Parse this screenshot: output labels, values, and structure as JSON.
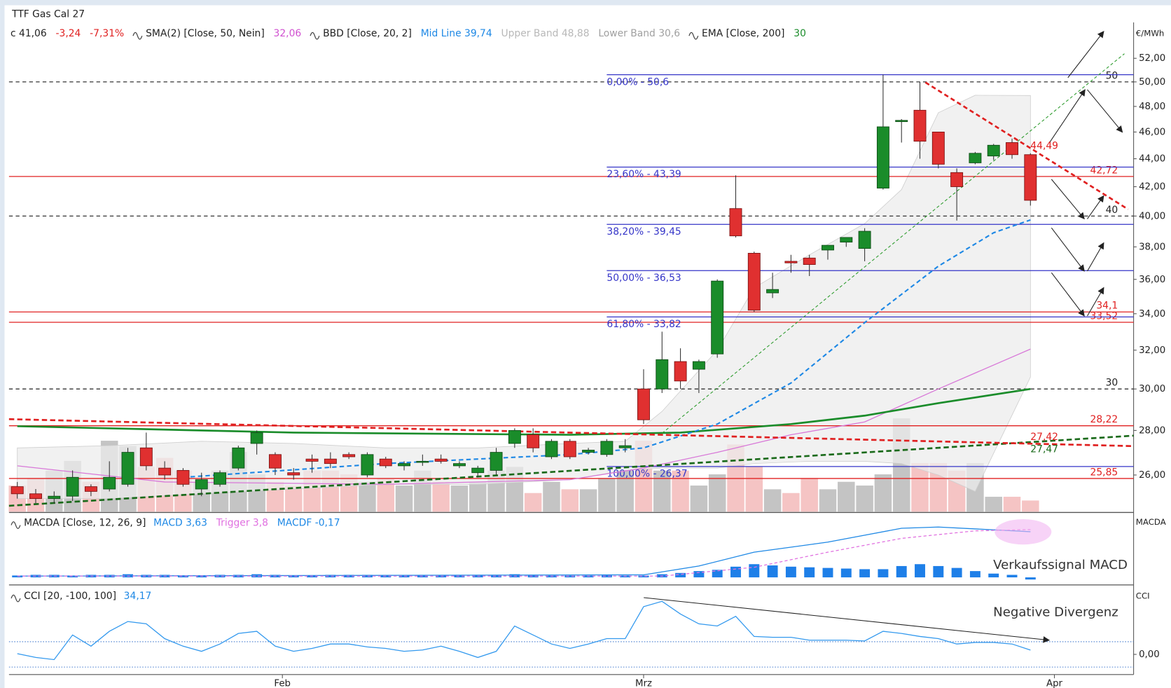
{
  "chart_data": [
    {
      "type": "candlestick",
      "title": "TTF Gas Cal 27",
      "unit": "€/MWh",
      "header": [
        {
          "text": "c 41,06",
          "color": "#222222"
        },
        {
          "text": "-3,24",
          "color": "#e02020"
        },
        {
          "text": "-7,31%",
          "color": "#e02020"
        },
        {
          "text": "SMA(2) [Close, 50, Nein]",
          "color": "#222222",
          "icon": true
        },
        {
          "text": "32,06",
          "color": "#d050d0"
        },
        {
          "text": "BBD [Close, 20, 2]",
          "color": "#222222",
          "icon": true
        },
        {
          "text": "Mid Line 39,74",
          "color": "#1e88e5"
        },
        {
          "text": "Upper Band 48,88",
          "color": "#b8b8b8"
        },
        {
          "text": "Lower Band 30,6",
          "color": "#a0a0a0"
        },
        {
          "text": "EMA [Close, 200]",
          "color": "#222222",
          "icon": true
        },
        {
          "text": "30",
          "color": "#1a8c2a"
        }
      ],
      "log_scale": true,
      "xlim": [
        -0.45,
        60.6
      ],
      "xticks": [
        {
          "value": 14.39,
          "label": "Feb"
        },
        {
          "value": 34.0,
          "label": "Mrz"
        },
        {
          "value": 56.3,
          "label": "Apr"
        }
      ],
      "ylim": [
        24.46,
        55.2
      ],
      "yticks": [
        {
          "value": 26,
          "label": "26,00"
        },
        {
          "value": 28,
          "label": "28,00"
        },
        {
          "value": 30,
          "label": "30,00"
        },
        {
          "value": 32,
          "label": "32,00"
        },
        {
          "value": 34,
          "label": "34,00"
        },
        {
          "value": 36,
          "label": "36,00"
        },
        {
          "value": 38,
          "label": "38,00"
        },
        {
          "value": 40,
          "label": "40,00"
        },
        {
          "value": 42,
          "label": "42,00"
        },
        {
          "value": 44,
          "label": "44,00"
        },
        {
          "value": 46,
          "label": "46,00"
        },
        {
          "value": 48,
          "label": "48,00"
        },
        {
          "value": 50,
          "label": "50,00"
        },
        {
          "value": 52,
          "label": "52,00"
        }
      ],
      "up_color": "#1a8c2a",
      "down_color": "#e03030",
      "open": [
        25.5,
        25.2,
        25.0,
        25.1,
        25.5,
        25.4,
        25.6,
        27.2,
        26.3,
        26.2,
        25.4,
        25.6,
        26.3,
        27.4,
        26.9,
        26.1,
        26.7,
        26.7,
        26.9,
        26.0,
        26.7,
        26.4,
        26.6,
        26.7,
        26.4,
        26.1,
        26.2,
        27.4,
        27.8,
        26.8,
        27.5,
        27.0,
        26.9,
        27.2,
        30.0,
        30.0,
        31.4,
        31.0,
        31.8,
        40.5,
        37.6,
        35.2,
        37.1,
        37.3,
        37.8,
        38.3,
        37.9,
        41.9,
        46.8,
        47.7,
        46.0,
        43.0,
        43.7,
        44.2,
        45.2,
        44.3
      ],
      "high": [
        25.7,
        25.4,
        25.3,
        26.2,
        25.6,
        26.6,
        27.2,
        27.9,
        26.6,
        26.3,
        26.1,
        26.2,
        27.3,
        28.0,
        27.0,
        26.3,
        26.9,
        27.0,
        27.0,
        27.0,
        26.8,
        26.6,
        26.9,
        26.9,
        26.6,
        26.4,
        27.2,
        28.1,
        28.1,
        27.6,
        27.6,
        27.2,
        27.6,
        27.6,
        31.0,
        33.0,
        32.1,
        31.5,
        36.0,
        42.8,
        37.7,
        36.4,
        37.5,
        37.5,
        38.1,
        38.6,
        39.2,
        50.6,
        47.0,
        50.0,
        46.0,
        43.3,
        44.5,
        45.1,
        45.5,
        44.4
      ],
      "low": [
        25.0,
        24.8,
        24.8,
        24.9,
        25.1,
        25.3,
        25.5,
        26.2,
        25.8,
        25.5,
        25.1,
        25.5,
        26.2,
        26.9,
        26.0,
        25.8,
        26.1,
        26.3,
        26.7,
        25.9,
        26.3,
        26.2,
        26.4,
        26.5,
        26.3,
        25.9,
        26.0,
        27.2,
        27.0,
        26.7,
        26.7,
        26.9,
        26.8,
        27.0,
        28.3,
        29.8,
        30.0,
        29.8,
        31.6,
        38.6,
        34.1,
        34.9,
        36.4,
        36.2,
        37.2,
        38.0,
        37.1,
        41.8,
        45.2,
        44.0,
        43.3,
        39.7,
        43.6,
        43.9,
        44.0,
        40.7
      ],
      "close": [
        25.2,
        25.0,
        25.1,
        25.9,
        25.3,
        25.9,
        27.0,
        26.4,
        26.0,
        25.6,
        25.8,
        26.1,
        27.2,
        27.9,
        26.3,
        26.0,
        26.6,
        26.5,
        26.8,
        26.9,
        26.4,
        26.5,
        26.6,
        26.6,
        26.5,
        26.3,
        27.0,
        28.0,
        27.2,
        27.5,
        26.8,
        27.1,
        27.5,
        27.3,
        28.5,
        31.5,
        30.4,
        31.4,
        35.9,
        38.7,
        34.2,
        35.4,
        37.0,
        36.9,
        38.1,
        38.6,
        39.0,
        46.4,
        46.9,
        45.3,
        43.6,
        42.0,
        44.4,
        45.0,
        44.3,
        41.06
      ],
      "volume": [
        35,
        45,
        55,
        68,
        40,
        95,
        88,
        60,
        72,
        55,
        40,
        55,
        80,
        50,
        40,
        35,
        55,
        55,
        50,
        40,
        45,
        35,
        55,
        40,
        35,
        40,
        55,
        60,
        25,
        40,
        30,
        30,
        45,
        55,
        95,
        55,
        55,
        35,
        50,
        90,
        60,
        30,
        25,
        45,
        30,
        40,
        35,
        50,
        125,
        65,
        65,
        55,
        65,
        20,
        20,
        15
      ],
      "volume_lim": [
        0,
        140
      ],
      "volume_up_color": "#c4c4c4",
      "volume_down_color": "#f5c4c4",
      "band": {
        "color": "#ececec",
        "x": [
          0,
          5,
          10,
          15,
          20,
          25,
          30,
          33,
          35,
          38,
          40,
          43,
          46,
          48,
          50,
          52,
          55
        ],
        "upper": [
          27.2,
          27.3,
          27.5,
          27.4,
          27.2,
          27.2,
          27.4,
          27.5,
          28.9,
          32.0,
          35.5,
          37.5,
          39.5,
          41.8,
          47.5,
          48.9,
          48.88
        ],
        "lower": [
          25.0,
          25.0,
          25.2,
          25.4,
          25.6,
          25.6,
          25.8,
          26.2,
          26.3,
          26.3,
          26.5,
          26.6,
          26.6,
          26.5,
          26.0,
          25.3,
          30.6
        ]
      },
      "lines": [
        {
          "color": "#d878d8",
          "width": 1.2,
          "dashed": false,
          "x": [
            0,
            8,
            20,
            30,
            34,
            38,
            42,
            46,
            50,
            55
          ],
          "values": [
            26.4,
            25.7,
            25.6,
            25.8,
            26.3,
            27.0,
            27.8,
            28.4,
            30.0,
            32.06
          ]
        },
        {
          "color": "#1a8c2a",
          "width": 2.5,
          "dashed": false,
          "x": [
            0,
            15,
            30,
            36,
            42,
            46,
            50,
            55
          ],
          "values": [
            28.2,
            27.9,
            27.8,
            27.9,
            28.3,
            28.7,
            29.3,
            30.0
          ]
        },
        {
          "color": "#1e88e5",
          "width": 2,
          "dashed": true,
          "x": [
            9,
            20,
            30,
            34,
            38,
            42,
            46,
            50,
            53,
            55
          ],
          "values": [
            25.9,
            26.5,
            26.9,
            27.2,
            28.3,
            30.3,
            33.5,
            36.8,
            38.9,
            39.74
          ]
        }
      ],
      "trendlines": [
        {
          "color": "#1a6a1a",
          "width": 2.5,
          "dash": "7 4",
          "x": [
            -0.45,
            60.6
          ],
          "values": [
            24.7,
            27.76
          ]
        },
        {
          "color": "#e02020",
          "width": 2.5,
          "dash": "7 4",
          "x": [
            -0.45,
            60.6
          ],
          "values": [
            28.53,
            27.28
          ]
        },
        {
          "color": "#2a9a2a",
          "width": 1,
          "dash": "4 3",
          "x": [
            35,
            60.1
          ],
          "values": [
            27.87,
            52.4
          ]
        },
        {
          "color": "#e02020",
          "width": 2.5,
          "dash": "6 4",
          "x": [
            49.3,
            60.3
          ],
          "values": [
            49.96,
            40.45
          ]
        }
      ],
      "levels": [
        {
          "value": 50,
          "color": "#333333",
          "dashed": true
        },
        {
          "value": 40,
          "color": "#333333",
          "dashed": true
        },
        {
          "value": 30,
          "color": "#333333",
          "dashed": true
        },
        {
          "value": 42.72,
          "label": "42,72",
          "color": "#e02020"
        },
        {
          "value": 34.1,
          "label": "34,1",
          "color": "#e02020"
        },
        {
          "value": 33.52,
          "label": "33,52",
          "color": "#e02020"
        },
        {
          "value": 28.22,
          "label": "28,22",
          "color": "#e02020"
        },
        {
          "value": 25.85,
          "label": "25,85",
          "color": "#e02020"
        },
        {
          "value": 50.6,
          "label": "0,00% - 50,6",
          "color": "#3535c8",
          "x0": 32
        },
        {
          "value": 43.39,
          "label": "23,60% - 43,39",
          "color": "#3535c8",
          "x0": 32
        },
        {
          "value": 39.45,
          "label": "38,20% - 39,45",
          "color": "#3535c8",
          "x0": 32
        },
        {
          "value": 36.53,
          "label": "50,00% - 36,53",
          "color": "#3535c8",
          "x0": 32
        },
        {
          "value": 33.82,
          "label": "61,80% - 33,82",
          "color": "#3535c8",
          "x0": 32
        },
        {
          "value": 26.37,
          "label": "100,00% - 26,37",
          "color": "#3535c8",
          "x0": 32
        }
      ],
      "line_labels": [
        {
          "x": 55,
          "value": 44.49,
          "label": "44,49",
          "color": "#e02020"
        },
        {
          "x": 55,
          "value": 27.42,
          "label": "27,42",
          "color": "#e02020"
        },
        {
          "x": 55,
          "value": 27.47,
          "label": "27,47",
          "color": "#1a6a1a"
        }
      ]
    },
    {
      "type": "macd",
      "title": "MACDA [Close, 12, 26, 9]",
      "header": [
        {
          "text": "MACD 3,63",
          "color": "#1e88e5"
        },
        {
          "text": "Trigger 3,8",
          "color": "#e070e0"
        },
        {
          "text": "MACDF -0,17",
          "color": "#1e88e5"
        }
      ],
      "axis_label": "MACDA",
      "annotation": "Verkaufssignal MACD",
      "ylim": [
        -0.54,
        5.1
      ],
      "histogram_color": "#1e7fe8",
      "histogram": [
        0.15,
        0.2,
        0.2,
        0.15,
        0.2,
        0.2,
        0.25,
        0.2,
        0.2,
        0.15,
        0.15,
        0.2,
        0.2,
        0.25,
        0.2,
        0.15,
        0.15,
        0.2,
        0.2,
        0.2,
        0.15,
        0.15,
        0.15,
        0.2,
        0.15,
        0.15,
        0.2,
        0.25,
        0.2,
        0.15,
        0.15,
        0.15,
        0.2,
        0.15,
        0.15,
        0.25,
        0.35,
        0.5,
        0.6,
        0.85,
        1.05,
        0.95,
        0.85,
        0.8,
        0.75,
        0.7,
        0.65,
        0.65,
        0.9,
        1.05,
        0.9,
        0.75,
        0.5,
        0.3,
        0.2,
        -0.17
      ],
      "lines": [
        {
          "color": "#1e88e5",
          "width": 1.2,
          "dashed": false,
          "x": [
            0,
            34,
            37,
            40,
            44,
            48,
            50,
            55
          ],
          "values": [
            0.1,
            0.2,
            0.9,
            2.0,
            2.8,
            3.9,
            4.0,
            3.63
          ]
        },
        {
          "color": "#e070e0",
          "width": 1.2,
          "dashed": true,
          "x": [
            0,
            35,
            40,
            44,
            48,
            52,
            55
          ],
          "values": [
            0.1,
            0.1,
            0.8,
            2.0,
            3.1,
            3.7,
            3.8
          ]
        }
      ]
    },
    {
      "type": "cci",
      "title": "CCI [20, -100, 100]",
      "header": [
        {
          "text": "34,17",
          "color": "#1e88e5"
        }
      ],
      "axis_label": "CCI",
      "annotation": "Negative Divergenz",
      "ylim": [
        -159,
        524
      ],
      "yticks": [
        {
          "value": 0,
          "label": "0,00"
        }
      ],
      "levels": [
        100,
        -100
      ],
      "color": "#3399ee",
      "values": [
        6,
        -24,
        -41,
        153,
        65,
        182,
        259,
        241,
        124,
        65,
        24,
        82,
        165,
        182,
        65,
        24,
        47,
        82,
        82,
        59,
        47,
        24,
        35,
        65,
        24,
        -24,
        24,
        224,
        153,
        82,
        47,
        82,
        124,
        124,
        376,
        418,
        318,
        241,
        224,
        300,
        141,
        135,
        135,
        112,
        112,
        112,
        106,
        182,
        165,
        141,
        124,
        82,
        94,
        94,
        82,
        34.17
      ]
    }
  ]
}
